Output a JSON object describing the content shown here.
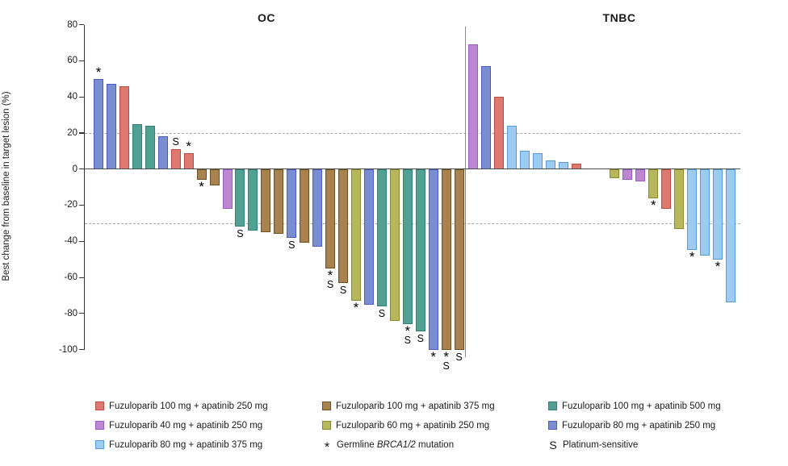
{
  "chart_data": {
    "type": "bar",
    "subtype": "waterfall",
    "ylabel": "Best change from baseline in target lesion (%)",
    "ylim": [
      -100,
      80
    ],
    "ytick_interval": 20,
    "yticks": [
      80,
      60,
      40,
      20,
      0,
      -20,
      -40,
      -60,
      -80,
      -100
    ],
    "reference_lines": [
      20,
      -30
    ],
    "grid": "off",
    "legend_position": "bottom",
    "groups": {
      "fuz100_apa250": {
        "label": "Fuzuloparib 100 mg + apatinib 250 mg",
        "fill": "#DB7A70",
        "stroke": "#C04A40"
      },
      "fuz100_apa375": {
        "label": "Fuzuloparib 100 mg + apatinib 375 mg",
        "fill": "#A8834F",
        "stroke": "#6E4F1E"
      },
      "fuz100_apa500": {
        "label": "Fuzuloparib 100 mg + apatinib 500 mg",
        "fill": "#51A093",
        "stroke": "#2E8173"
      },
      "fuz40_apa250": {
        "label": "Fuzuloparib 40 mg + apatinib 250 mg",
        "fill": "#BD87D2",
        "stroke": "#9C5BC4"
      },
      "fuz60_apa250": {
        "label": "Fuzuloparib 60 mg + apatinib 250 mg",
        "fill": "#B7B85B",
        "stroke": "#898A2D"
      },
      "fuz80_apa250": {
        "label": "Fuzuloparib 80 mg + apatinib 250 mg",
        "fill": "#7B8DD1",
        "stroke": "#4A5BC8"
      },
      "fuz80_apa375": {
        "label": "Fuzuloparib 80 mg + apatinib 375 mg",
        "fill": "#9ECBF0",
        "stroke": "#549BD9"
      }
    },
    "symbols": {
      "sym_brca": {
        "glyph": "*",
        "label_pre": "Germline ",
        "label_italic": "BRCA1/2",
        "label_post": " mutation"
      },
      "sym_platinum": {
        "glyph": "S",
        "label": "Platinum-sensitive"
      }
    },
    "legend_rows": [
      [
        "fuz100_apa250",
        "fuz100_apa375",
        "fuz100_apa500"
      ],
      [
        "fuz40_apa250",
        "fuz60_apa250",
        "fuz80_apa250"
      ],
      [
        "fuz80_apa375",
        "sym_brca",
        "sym_platinum"
      ]
    ],
    "panels": [
      {
        "title": "OC",
        "bars": [
          {
            "value": 50,
            "group": "fuz80_apa250",
            "marks": "*"
          },
          {
            "value": 47,
            "group": "fuz80_apa250",
            "marks": ""
          },
          {
            "value": 46,
            "group": "fuz100_apa250",
            "marks": ""
          },
          {
            "value": 25,
            "group": "fuz100_apa500",
            "marks": ""
          },
          {
            "value": 24,
            "group": "fuz100_apa500",
            "marks": ""
          },
          {
            "value": 18,
            "group": "fuz80_apa250",
            "marks": ""
          },
          {
            "value": 11,
            "group": "fuz100_apa250",
            "marks": "S"
          },
          {
            "value": 9,
            "group": "fuz100_apa250",
            "marks": "*"
          },
          {
            "value": -6,
            "group": "fuz100_apa375",
            "marks": "*"
          },
          {
            "value": -9,
            "group": "fuz100_apa375",
            "marks": ""
          },
          {
            "value": -22,
            "group": "fuz40_apa250",
            "marks": ""
          },
          {
            "value": -32,
            "group": "fuz100_apa500",
            "marks": "S"
          },
          {
            "value": -34,
            "group": "fuz100_apa500",
            "marks": ""
          },
          {
            "value": -35,
            "group": "fuz100_apa375",
            "marks": ""
          },
          {
            "value": -36,
            "group": "fuz100_apa375",
            "marks": ""
          },
          {
            "value": -38,
            "group": "fuz80_apa250",
            "marks": "S"
          },
          {
            "value": -41,
            "group": "fuz100_apa375",
            "marks": ""
          },
          {
            "value": -43,
            "group": "fuz80_apa250",
            "marks": ""
          },
          {
            "value": -55,
            "group": "fuz100_apa375",
            "marks": "*S"
          },
          {
            "value": -63,
            "group": "fuz100_apa375",
            "marks": "S"
          },
          {
            "value": -73,
            "group": "fuz60_apa250",
            "marks": "*"
          },
          {
            "value": -75,
            "group": "fuz80_apa250",
            "marks": ""
          },
          {
            "value": -76,
            "group": "fuz100_apa500",
            "marks": "S"
          },
          {
            "value": -84,
            "group": "fuz60_apa250",
            "marks": ""
          },
          {
            "value": -86,
            "group": "fuz100_apa500",
            "marks": "*S"
          },
          {
            "value": -90,
            "group": "fuz100_apa500",
            "marks": "S"
          },
          {
            "value": -100,
            "group": "fuz80_apa250",
            "marks": "*"
          },
          {
            "value": -100,
            "group": "fuz100_apa375",
            "marks": "*S"
          },
          {
            "value": -100,
            "group": "fuz100_apa375",
            "marks": "S"
          }
        ]
      },
      {
        "title": "TNBC",
        "bars": [
          {
            "slot": 0,
            "value": 69,
            "group": "fuz40_apa250",
            "marks": ""
          },
          {
            "slot": 1,
            "value": 57,
            "group": "fuz80_apa250",
            "marks": ""
          },
          {
            "slot": 2,
            "value": 40,
            "group": "fuz100_apa250",
            "marks": ""
          },
          {
            "slot": 3,
            "value": 24,
            "group": "fuz80_apa375",
            "marks": ""
          },
          {
            "slot": 4,
            "value": 10,
            "group": "fuz80_apa375",
            "marks": ""
          },
          {
            "slot": 5,
            "value": 9,
            "group": "fuz80_apa375",
            "marks": ""
          },
          {
            "slot": 6,
            "value": 5,
            "group": "fuz80_apa375",
            "marks": ""
          },
          {
            "slot": 7,
            "value": 4,
            "group": "fuz80_apa375",
            "marks": ""
          },
          {
            "slot": 8,
            "value": 3,
            "group": "fuz100_apa250",
            "marks": ""
          },
          {
            "slot": 11,
            "value": -5,
            "group": "fuz60_apa250",
            "marks": ""
          },
          {
            "slot": 12,
            "value": -6,
            "group": "fuz40_apa250",
            "marks": ""
          },
          {
            "slot": 13,
            "value": -7,
            "group": "fuz40_apa250",
            "marks": ""
          },
          {
            "slot": 14,
            "value": -16,
            "group": "fuz60_apa250",
            "marks": "*"
          },
          {
            "slot": 15,
            "value": -22,
            "group": "fuz100_apa250",
            "marks": ""
          },
          {
            "slot": 16,
            "value": -33,
            "group": "fuz60_apa250",
            "marks": ""
          },
          {
            "slot": 17,
            "value": -45,
            "group": "fuz80_apa375",
            "marks": "*"
          },
          {
            "slot": 18,
            "value": -48,
            "group": "fuz80_apa375",
            "marks": ""
          },
          {
            "slot": 19,
            "value": -50,
            "group": "fuz80_apa375",
            "marks": "*"
          },
          {
            "slot": 20,
            "value": -74,
            "group": "fuz80_apa375",
            "marks": ""
          }
        ]
      }
    ]
  }
}
